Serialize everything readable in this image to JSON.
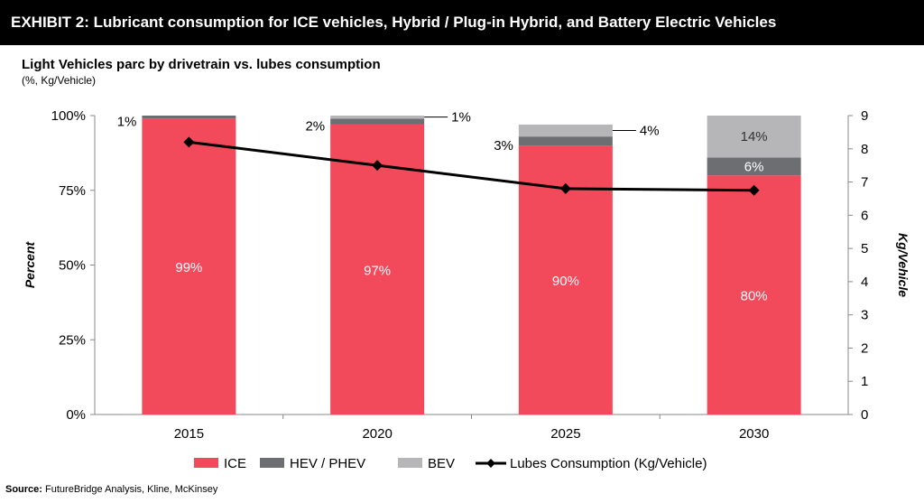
{
  "banner": {
    "title": "EXHIBIT 2: Lubricant consumption for ICE vehicles, Hybrid / Plug-in Hybrid, and Battery Electric Vehicles"
  },
  "subtitle": "Light Vehicles parc by drivetrain vs. lubes consumption",
  "units": "(%, Kg/Vehicle)",
  "source": {
    "label": "Source:",
    "text": "FutureBridge Analysis, Kline, McKinsey"
  },
  "chart_data": {
    "type": "bar",
    "stacked": true,
    "categories": [
      "2015",
      "2020",
      "2025",
      "2030"
    ],
    "series": [
      {
        "name": "ICE",
        "values": [
          99,
          97,
          90,
          80
        ],
        "labels": [
          "99%",
          "97%",
          "90%",
          "80%"
        ],
        "color": "#f24a5b"
      },
      {
        "name": "HEV / PHEV",
        "values": [
          1,
          2,
          3,
          6
        ],
        "labels": [
          "1%",
          "2%",
          "3%",
          "6%"
        ],
        "color": "#6d6e71"
      },
      {
        "name": "BEV",
        "values": [
          0,
          1,
          4,
          14
        ],
        "labels": [
          "",
          "1%",
          "4%",
          "14%"
        ],
        "color": "#b6b6b8"
      }
    ],
    "line_series": {
      "name": "Lubes Consumption (Kg/Vehicle)",
      "axis": "right",
      "values": [
        8.2,
        7.5,
        6.8,
        6.75
      ],
      "color": "#000000"
    },
    "ylabel": "Percent",
    "ylim": [
      0,
      100
    ],
    "y_ticks": [
      "0%",
      "25%",
      "50%",
      "75%",
      "100%"
    ],
    "y2label": "Kg/Vehicle",
    "y2lim": [
      0,
      9
    ],
    "y2_ticks": [
      "0",
      "1",
      "2",
      "3",
      "4",
      "5",
      "6",
      "7",
      "8",
      "9"
    ],
    "legend": [
      "ICE",
      "HEV / PHEV",
      "BEV",
      "Lubes Consumption (Kg/Vehicle)"
    ],
    "legend_position": "bottom",
    "grid": false
  }
}
